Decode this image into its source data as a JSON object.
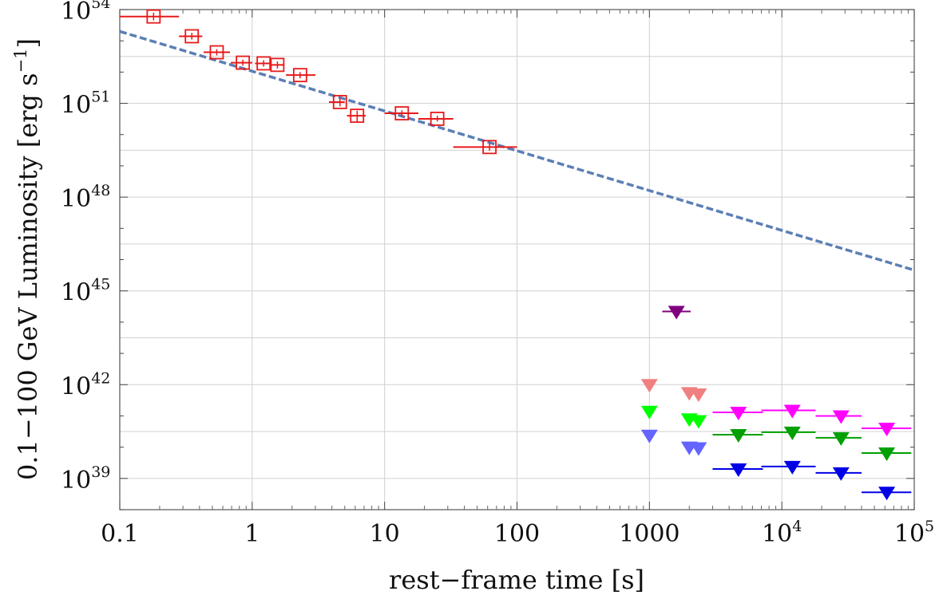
{
  "chart_data": {
    "type": "scatter",
    "title": "",
    "xlabel": "rest−frame  time [s]",
    "ylabel_main": "0.1−100 GeV Luminosity  [erg s",
    "ylabel_sup": "−1",
    "ylabel_close": "]",
    "x_scale": "log",
    "y_scale": "log",
    "xlim": [
      0.1,
      100000
    ],
    "ylim": [
      1e+38,
      1e+54
    ],
    "grid": true,
    "x_ticks": [
      {
        "value": 0.1,
        "label": "0.1",
        "exp": ""
      },
      {
        "value": 1,
        "label": "1",
        "exp": ""
      },
      {
        "value": 10,
        "label": "10",
        "exp": ""
      },
      {
        "value": 100,
        "label": "100",
        "exp": ""
      },
      {
        "value": 1000,
        "label": "1000",
        "exp": ""
      },
      {
        "value": 10000,
        "label": "10",
        "exp": "4"
      },
      {
        "value": 100000,
        "label": "10",
        "exp": "5"
      }
    ],
    "y_ticks": [
      {
        "value": 1e+39,
        "label": "10",
        "exp": "39"
      },
      {
        "value": 1e+42,
        "label": "10",
        "exp": "42"
      },
      {
        "value": 1e+45,
        "label": "10",
        "exp": "45"
      },
      {
        "value": 1e+48,
        "label": "10",
        "exp": "48"
      },
      {
        "value": 1e+51,
        "label": "10",
        "exp": "51"
      },
      {
        "value": 1e+54,
        "label": "10",
        "exp": "54"
      }
    ],
    "fit_line": {
      "style": "dashed",
      "color": "#5b7fb5",
      "points": [
        [
          0.1,
          2e+53
        ],
        [
          100000,
          4.6e+45
        ]
      ]
    },
    "detections": {
      "color": "#e8191a",
      "marker": "square",
      "points": [
        {
          "x": 0.18,
          "y": 6e+53,
          "xlo": 0.1,
          "xhi": 0.28,
          "ylo": 4.5e+53,
          "yhi": 8e+53
        },
        {
          "x": 0.35,
          "y": 1.4e+53,
          "xlo": 0.28,
          "xhi": 0.42,
          "ylo": 1.1e+53,
          "yhi": 1.8e+53
        },
        {
          "x": 0.54,
          "y": 4.3e+52,
          "xlo": 0.43,
          "xhi": 0.68,
          "ylo": 3.4e+52,
          "yhi": 5.4e+52
        },
        {
          "x": 0.85,
          "y": 2e+52,
          "xlo": 0.69,
          "xhi": 1.0,
          "ylo": 1.6e+52,
          "yhi": 2.5e+52
        },
        {
          "x": 1.22,
          "y": 1.9e+52,
          "xlo": 1.05,
          "xhi": 1.38,
          "ylo": 1.5e+52,
          "yhi": 2.4e+52
        },
        {
          "x": 1.55,
          "y": 1.7e+52,
          "xlo": 1.38,
          "xhi": 1.75,
          "ylo": 1.3e+52,
          "yhi": 2.2e+52
        },
        {
          "x": 2.3,
          "y": 8e+51,
          "xlo": 1.8,
          "xhi": 3.0,
          "ylo": 6.3e+51,
          "yhi": 1e+52
        },
        {
          "x": 4.6,
          "y": 1.1e+51,
          "xlo": 3.8,
          "xhi": 5.0,
          "ylo": 8e+50,
          "yhi": 1.5e+51
        },
        {
          "x": 6.2,
          "y": 4e+50,
          "xlo": 5.2,
          "xhi": 7.2,
          "ylo": 2.6e+50,
          "yhi": 5.8e+50
        },
        {
          "x": 13.5,
          "y": 4.8e+50,
          "xlo": 10.0,
          "xhi": 18.0,
          "ylo": 3.8e+50,
          "yhi": 6e+50
        },
        {
          "x": 25.0,
          "y": 3.2e+50,
          "xlo": 18.0,
          "xhi": 33.0,
          "ylo": 2.6e+50,
          "yhi": 4e+50
        },
        {
          "x": 62.0,
          "y": 4e+49,
          "xlo": 33.0,
          "xhi": 100.0,
          "ylo": 3e+49,
          "yhi": 5.3e+49
        }
      ]
    },
    "upper_limits": [
      {
        "color": "#800080",
        "points": [
          {
            "x": 1600,
            "y": 2.2e+44,
            "xlo": 1250,
            "xhi": 2050
          }
        ]
      },
      {
        "color": "#f08080",
        "points": [
          {
            "x": 1000,
            "y": 1e+42
          },
          {
            "x": 2000,
            "y": 5.5e+41
          },
          {
            "x": 2350,
            "y": 5e+41
          }
        ]
      },
      {
        "color": "#00ff00",
        "points": [
          {
            "x": 1000,
            "y": 1.4e+41
          },
          {
            "x": 2000,
            "y": 8e+40
          },
          {
            "x": 2350,
            "y": 7e+40
          }
        ]
      },
      {
        "color": "#6464ff",
        "points": [
          {
            "x": 1000,
            "y": 2.4e+40
          },
          {
            "x": 2000,
            "y": 1e+40
          },
          {
            "x": 2350,
            "y": 9.5e+39
          }
        ]
      },
      {
        "color": "#ff00ff",
        "points": [
          {
            "x": 4700,
            "y": 1.3e+41,
            "xlo": 3000,
            "xhi": 7200
          },
          {
            "x": 12000,
            "y": 1.5e+41,
            "xlo": 7000,
            "xhi": 18000
          },
          {
            "x": 28000,
            "y": 1e+41,
            "xlo": 18000,
            "xhi": 40000
          },
          {
            "x": 62000,
            "y": 4e+40,
            "xlo": 40000,
            "xhi": 95000
          }
        ]
      },
      {
        "color": "#00a000",
        "points": [
          {
            "x": 4700,
            "y": 2.5e+40,
            "xlo": 3000,
            "xhi": 7200
          },
          {
            "x": 12000,
            "y": 3e+40,
            "xlo": 7000,
            "xhi": 18000
          },
          {
            "x": 28000,
            "y": 2e+40,
            "xlo": 18000,
            "xhi": 40000
          },
          {
            "x": 62000,
            "y": 6.5e+39,
            "xlo": 40000,
            "xhi": 95000
          }
        ]
      },
      {
        "color": "#0000e6",
        "points": [
          {
            "x": 4700,
            "y": 2e+39,
            "xlo": 3000,
            "xhi": 7200
          },
          {
            "x": 12000,
            "y": 2.4e+39,
            "xlo": 7000,
            "xhi": 18000
          },
          {
            "x": 28000,
            "y": 1.5e+39,
            "xlo": 18000,
            "xhi": 40000
          },
          {
            "x": 62000,
            "y": 3.6e+38,
            "xlo": 40000,
            "xhi": 95000
          }
        ]
      }
    ]
  }
}
